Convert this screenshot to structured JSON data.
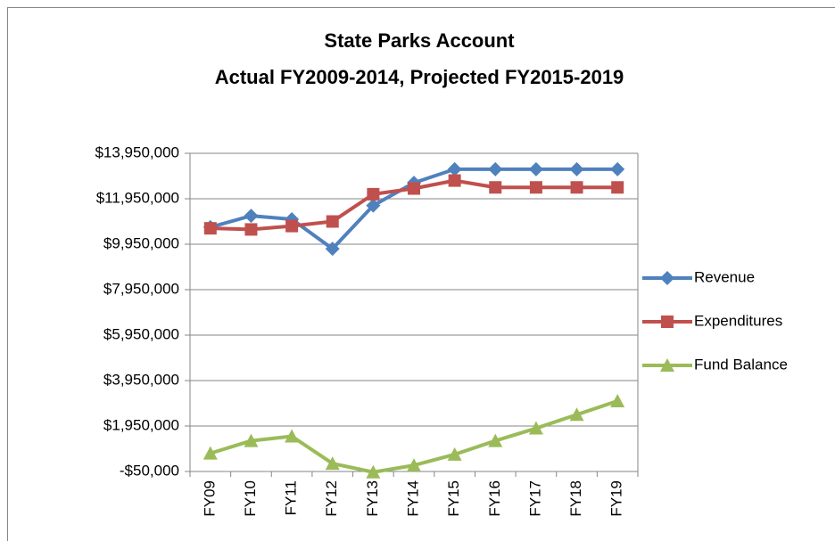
{
  "chart_data": {
    "type": "line",
    "title": "State Parks Account",
    "subtitle": "Actual FY2009-2014, Projected FY2015-2019",
    "categories": [
      "FY09",
      "FY10",
      "FY11",
      "FY12",
      "FY13",
      "FY14",
      "FY15",
      "FY16",
      "FY17",
      "FY18",
      "FY19"
    ],
    "series": [
      {
        "name": "Revenue",
        "color": "#4f81bd",
        "marker": "diamond",
        "values": [
          10700000,
          11200000,
          11050000,
          9750000,
          11650000,
          12650000,
          13250000,
          13250000,
          13250000,
          13250000,
          13250000
        ]
      },
      {
        "name": "Expenditures",
        "color": "#c0504d",
        "marker": "square",
        "values": [
          10650000,
          10600000,
          10750000,
          10950000,
          12150000,
          12400000,
          12750000,
          12450000,
          12450000,
          12450000,
          12450000
        ]
      },
      {
        "name": "Fund Balance",
        "color": "#9bbb59",
        "marker": "triangle",
        "values": [
          750000,
          1300000,
          1500000,
          300000,
          -80000,
          220000,
          700000,
          1300000,
          1850000,
          2450000,
          3050000
        ]
      }
    ],
    "ylim": [
      -50000,
      13950000
    ],
    "yticks": [
      {
        "value": -50000,
        "label": "-$50,000"
      },
      {
        "value": 1950000,
        "label": "$1,950,000"
      },
      {
        "value": 3950000,
        "label": "$3,950,000"
      },
      {
        "value": 5950000,
        "label": "$5,950,000"
      },
      {
        "value": 7950000,
        "label": "$7,950,000"
      },
      {
        "value": 9950000,
        "label": "$9,950,000"
      },
      {
        "value": 11950000,
        "label": "$11,950,000"
      },
      {
        "value": 13950000,
        "label": "$13,950,000"
      }
    ],
    "grid": true,
    "legend": "right"
  }
}
